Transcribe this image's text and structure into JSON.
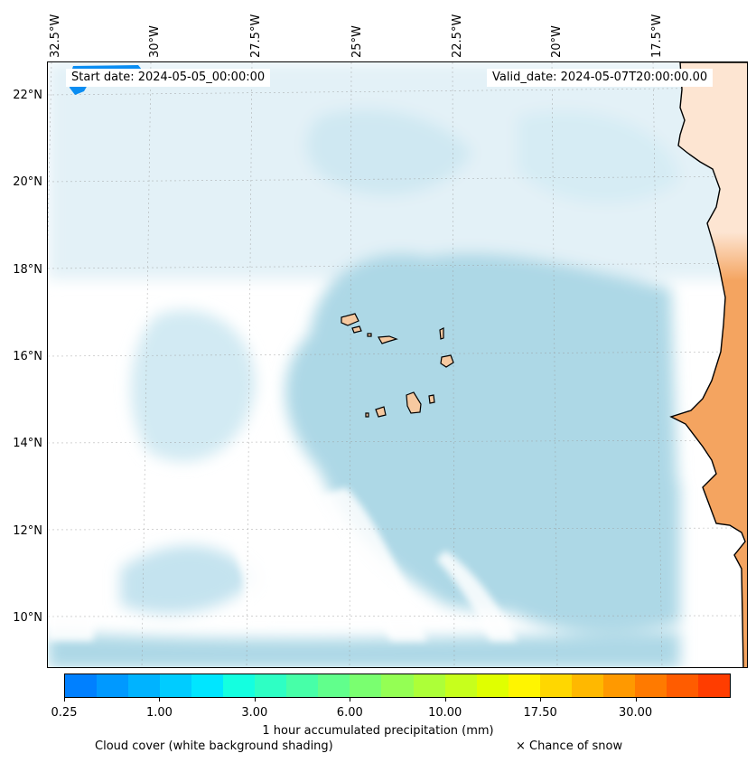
{
  "map": {
    "lon_labels": [
      "32.5°W",
      "30°W",
      "27.5°W",
      "25°W",
      "22.5°W",
      "20°W",
      "17.5°W"
    ],
    "lat_labels": [
      "22°N",
      "20°N",
      "18°N",
      "16°N",
      "14°N",
      "12°N",
      "10°N"
    ],
    "start_date": "Start date: 2024-05-05_00:00:00",
    "valid_date": "Valid_date: 2024-05-07T20:00:00.00",
    "colors": {
      "ocean_cloud": "#add8e6",
      "land": "#f4a460",
      "land_light": "#fde5d2",
      "coastline": "#000000",
      "precip": "#0a8df2"
    }
  },
  "colorbar": {
    "tick_labels": [
      "0.25",
      "1.00",
      "3.00",
      "6.00",
      "10.00",
      "17.50",
      "30.00"
    ],
    "colors": [
      "#0080ff",
      "#0099ff",
      "#00b3ff",
      "#00ccff",
      "#00e6ff",
      "#14ffe0",
      "#2effc4",
      "#47ffa8",
      "#61ff8c",
      "#7aff70",
      "#94ff54",
      "#adff38",
      "#c7ff1c",
      "#e0ff00",
      "#fff500",
      "#ffd700",
      "#ffb800",
      "#ff9900",
      "#ff7a00",
      "#ff5c00",
      "#ff3d00"
    ],
    "label": "1 hour accumulated precipitation (mm)"
  },
  "legend": {
    "cloud_cover": "Cloud cover (white background shading)",
    "snow": "× Chance of snow"
  }
}
